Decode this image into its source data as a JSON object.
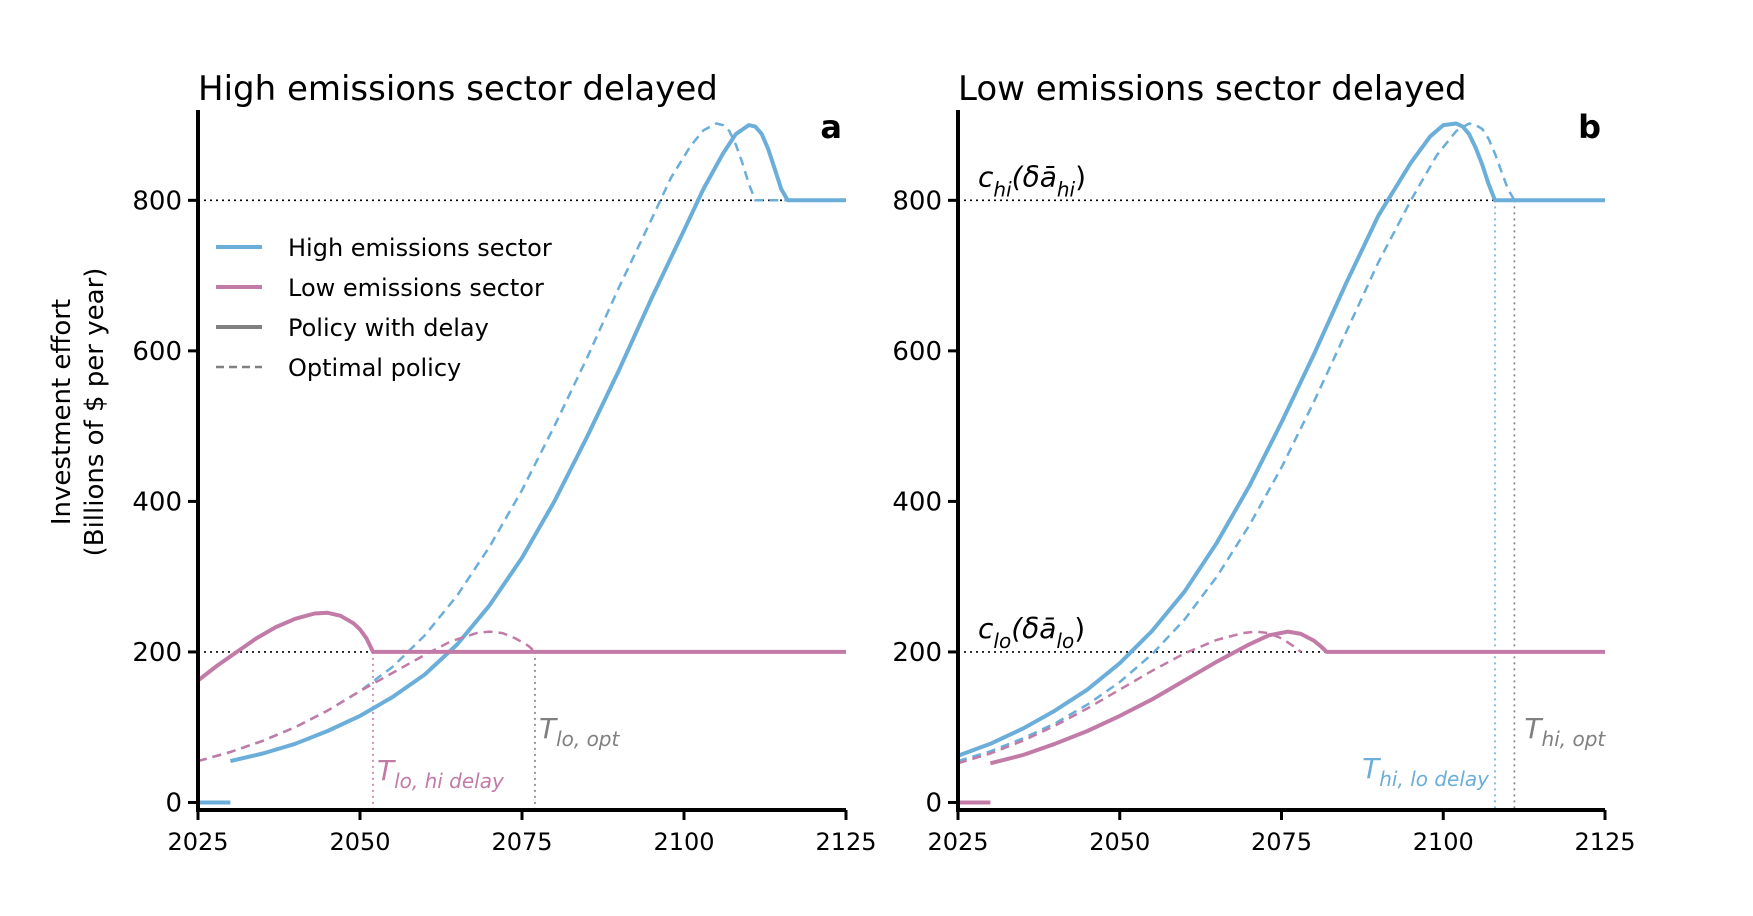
{
  "colors": {
    "high": "#6aaed9",
    "low": "#c27ba7",
    "gray": "#808080",
    "dotted": "#000000"
  },
  "figure": {
    "ylabel_line1": "Investment effort",
    "ylabel_line2": "(Billions of $ per year)"
  },
  "legend": {
    "items": [
      {
        "label": "High emissions sector",
        "style": "solid",
        "color": "#6aaed9"
      },
      {
        "label": "Low emissions sector",
        "style": "solid",
        "color": "#c27ba7"
      },
      {
        "label": "Policy with delay",
        "style": "solid",
        "color": "#808080"
      },
      {
        "label": "Optimal policy",
        "style": "dashed",
        "color": "#808080"
      }
    ]
  },
  "chart_data": [
    {
      "type": "line",
      "panel": "a",
      "title": "High emissions sector delayed",
      "xlim": [
        2025,
        2125
      ],
      "ylim": [
        -10,
        920
      ],
      "xticks": [
        2025,
        2050,
        2075,
        2100,
        2125
      ],
      "yticks": [
        0,
        200,
        400,
        600,
        800
      ],
      "reference_lines": [
        {
          "y": 800,
          "label": ""
        },
        {
          "y": 200,
          "label": ""
        }
      ],
      "vlines": [
        {
          "x": 2052,
          "color": "low",
          "label": "T",
          "sub": "lo, hi delay"
        },
        {
          "x": 2077,
          "color": "gray",
          "label": "T",
          "sub": "lo, opt"
        }
      ],
      "series": [
        {
          "sector": "high",
          "style": "solid",
          "segments": [
            [
              [
                2025,
                0
              ],
              [
                2030,
                0
              ]
            ],
            [
              [
                2030,
                55
              ],
              [
                2035,
                65
              ],
              [
                2040,
                78
              ],
              [
                2045,
                95
              ],
              [
                2050,
                115
              ],
              [
                2052,
                125
              ],
              [
                2055,
                140
              ],
              [
                2060,
                170
              ],
              [
                2065,
                210
              ],
              [
                2070,
                262
              ],
              [
                2075,
                325
              ],
              [
                2080,
                400
              ],
              [
                2085,
                485
              ],
              [
                2090,
                575
              ],
              [
                2095,
                670
              ],
              [
                2100,
                760
              ],
              [
                2103,
                815
              ],
              [
                2106,
                862
              ],
              [
                2108,
                888
              ],
              [
                2110,
                900
              ],
              [
                2111,
                898
              ],
              [
                2112,
                888
              ],
              [
                2113,
                868
              ],
              [
                2114,
                842
              ],
              [
                2115,
                815
              ],
              [
                2116,
                800
              ],
              [
                2125,
                800
              ]
            ]
          ]
        },
        {
          "sector": "high",
          "style": "dashed",
          "segments": [
            [
              [
                2025,
                55
              ],
              [
                2030,
                67
              ],
              [
                2035,
                82
              ],
              [
                2040,
                100
              ],
              [
                2045,
                122
              ],
              [
                2050,
                148
              ],
              [
                2055,
                180
              ],
              [
                2060,
                222
              ],
              [
                2065,
                275
              ],
              [
                2070,
                340
              ],
              [
                2075,
                415
              ],
              [
                2080,
                500
              ],
              [
                2085,
                590
              ],
              [
                2090,
                685
              ],
              [
                2095,
                775
              ],
              [
                2098,
                830
              ],
              [
                2101,
                872
              ],
              [
                2103,
                893
              ],
              [
                2105,
                902
              ],
              [
                2106,
                900
              ],
              [
                2107,
                892
              ],
              [
                2108,
                874
              ],
              [
                2109,
                850
              ],
              [
                2110,
                822
              ],
              [
                2111,
                800
              ],
              [
                2125,
                800
              ]
            ]
          ]
        },
        {
          "sector": "low",
          "style": "solid",
          "segments": [
            [
              [
                2025,
                162
              ],
              [
                2028,
                182
              ],
              [
                2031,
                200
              ],
              [
                2034,
                218
              ],
              [
                2037,
                233
              ],
              [
                2040,
                244
              ],
              [
                2043,
                251
              ],
              [
                2045,
                252
              ],
              [
                2047,
                248
              ],
              [
                2049,
                238
              ],
              [
                2050,
                230
              ],
              [
                2051,
                218
              ],
              [
                2052,
                200
              ],
              [
                2125,
                200
              ]
            ]
          ]
        },
        {
          "sector": "low",
          "style": "dashed",
          "segments": [
            [
              [
                2025,
                55
              ],
              [
                2030,
                67
              ],
              [
                2035,
                82
              ],
              [
                2040,
                100
              ],
              [
                2045,
                122
              ],
              [
                2050,
                148
              ],
              [
                2055,
                172
              ],
              [
                2060,
                196
              ],
              [
                2064,
                214
              ],
              [
                2068,
                225
              ],
              [
                2070,
                227
              ],
              [
                2072,
                225
              ],
              [
                2074,
                218
              ],
              [
                2076,
                208
              ],
              [
                2077,
                200
              ]
            ]
          ]
        }
      ]
    },
    {
      "type": "line",
      "panel": "b",
      "title": "Low emissions sector delayed",
      "xlim": [
        2025,
        2125
      ],
      "ylim": [
        -10,
        920
      ],
      "xticks": [
        2025,
        2050,
        2075,
        2100,
        2125
      ],
      "yticks": [
        0,
        200,
        400,
        600,
        800
      ],
      "reference_lines": [
        {
          "y": 800,
          "label": "c",
          "sub": "hi",
          "arg": "(δā",
          "argsub": "hi",
          "close": ")"
        },
        {
          "y": 200,
          "label": "c",
          "sub": "lo",
          "arg": "(δā",
          "argsub": "lo",
          "close": ")"
        }
      ],
      "vlines": [
        {
          "x": 2108,
          "color": "high",
          "label": "T",
          "sub": "hi, lo delay"
        },
        {
          "x": 2111,
          "color": "gray",
          "label": "T",
          "sub": "hi, opt"
        }
      ],
      "series": [
        {
          "sector": "high",
          "style": "solid",
          "segments": [
            [
              [
                2025,
                62
              ],
              [
                2030,
                78
              ],
              [
                2035,
                98
              ],
              [
                2040,
                122
              ],
              [
                2045,
                150
              ],
              [
                2050,
                185
              ],
              [
                2055,
                228
              ],
              [
                2060,
                280
              ],
              [
                2065,
                345
              ],
              [
                2070,
                420
              ],
              [
                2075,
                505
              ],
              [
                2080,
                595
              ],
              [
                2085,
                690
              ],
              [
                2090,
                780
              ],
              [
                2095,
                850
              ],
              [
                2098,
                885
              ],
              [
                2100,
                900
              ],
              [
                2102,
                902
              ],
              [
                2103,
                898
              ],
              [
                2104,
                888
              ],
              [
                2105,
                870
              ],
              [
                2106,
                848
              ],
              [
                2107,
                822
              ],
              [
                2108,
                800
              ],
              [
                2125,
                800
              ]
            ]
          ]
        },
        {
          "sector": "high",
          "style": "dashed",
          "segments": [
            [
              [
                2025,
                55
              ],
              [
                2030,
                68
              ],
              [
                2035,
                85
              ],
              [
                2040,
                105
              ],
              [
                2045,
                130
              ],
              [
                2050,
                160
              ],
              [
                2055,
                197
              ],
              [
                2060,
                243
              ],
              [
                2065,
                300
              ],
              [
                2070,
                368
              ],
              [
                2075,
                445
              ],
              [
                2080,
                532
              ],
              [
                2085,
                625
              ],
              [
                2090,
                718
              ],
              [
                2095,
                800
              ],
              [
                2099,
                860
              ],
              [
                2102,
                892
              ],
              [
                2104,
                902
              ],
              [
                2105,
                900
              ],
              [
                2106,
                895
              ],
              [
                2107,
                882
              ],
              [
                2108,
                862
              ],
              [
                2109,
                838
              ],
              [
                2110,
                815
              ],
              [
                2111,
                800
              ]
            ]
          ]
        },
        {
          "sector": "low",
          "style": "solid",
          "segments": [
            [
              [
                2025,
                0
              ],
              [
                2030,
                0
              ]
            ],
            [
              [
                2030,
                52
              ],
              [
                2035,
                63
              ],
              [
                2040,
                78
              ],
              [
                2045,
                95
              ],
              [
                2050,
                115
              ],
              [
                2055,
                137
              ],
              [
                2060,
                162
              ],
              [
                2065,
                187
              ],
              [
                2070,
                210
              ],
              [
                2073,
                222
              ],
              [
                2076,
                227
              ],
              [
                2078,
                224
              ],
              [
                2080,
                215
              ],
              [
                2081,
                208
              ],
              [
                2082,
                200
              ],
              [
                2125,
                200
              ]
            ]
          ]
        },
        {
          "sector": "low",
          "style": "dashed",
          "segments": [
            [
              [
                2025,
                52
              ],
              [
                2030,
                65
              ],
              [
                2035,
                82
              ],
              [
                2040,
                102
              ],
              [
                2045,
                125
              ],
              [
                2050,
                150
              ],
              [
                2055,
                175
              ],
              [
                2060,
                198
              ],
              [
                2065,
                216
              ],
              [
                2069,
                225
              ],
              [
                2071,
                227
              ],
              [
                2073,
                225
              ],
              [
                2075,
                218
              ],
              [
                2077,
                207
              ],
              [
                2078,
                200
              ]
            ]
          ]
        }
      ]
    }
  ]
}
